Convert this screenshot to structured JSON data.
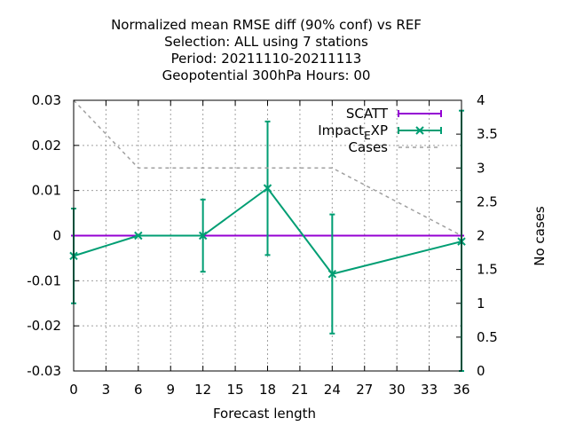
{
  "chart_data": {
    "type": "line",
    "title_lines": [
      "Normalized mean RMSE diff (90% conf) vs REF",
      "Selection: ALL using     7 stations",
      "Period: 20211110-20211113",
      "Geopotential 300hPa   Hours:  00"
    ],
    "xlabel": "Forecast length",
    "ylabel": "",
    "y2label": "No cases",
    "xlim": [
      0,
      36
    ],
    "ylim": [
      -0.03,
      0.03
    ],
    "y2lim": [
      0,
      4
    ],
    "xticks": [
      0,
      3,
      6,
      9,
      12,
      15,
      18,
      21,
      24,
      27,
      30,
      33,
      36
    ],
    "xtick_labels": [
      "0",
      "3",
      "6",
      "9",
      "12",
      "15",
      "18",
      "21",
      "24",
      "27",
      "30",
      "33",
      "36"
    ],
    "yticks": [
      -0.03,
      -0.02,
      -0.01,
      0,
      0.01,
      0.02,
      0.03
    ],
    "ytick_labels": [
      "-0.03",
      "-0.02",
      "-0.01",
      "0",
      "0.01",
      "0.02",
      "0.03"
    ],
    "y2ticks": [
      0,
      0.5,
      1,
      1.5,
      2,
      2.5,
      3,
      3.5,
      4
    ],
    "y2tick_labels": [
      "0",
      "0.5",
      "1",
      "1.5",
      "2",
      "2.5",
      "3",
      "3.5",
      "4"
    ],
    "grid": true,
    "legend_position": "top-right",
    "series": [
      {
        "name": "SCATT",
        "legend_main": "SCATT",
        "legend_sub": "",
        "legend_tail": "",
        "color": "#9400d3",
        "style": "errorbars",
        "axis": "y",
        "x": [
          0,
          6,
          12,
          18,
          24,
          36
        ],
        "y": [
          0,
          0,
          0,
          0,
          0,
          0
        ],
        "err": [
          0,
          0,
          0,
          0,
          0,
          0
        ]
      },
      {
        "name": "Impact_EXP",
        "legend_main": "Impact",
        "legend_sub": "E",
        "legend_tail": "XP",
        "color": "#009e73",
        "style": "errorbars",
        "axis": "y",
        "x": [
          0,
          6,
          12,
          18,
          24,
          36
        ],
        "y": [
          -0.0045,
          0.0,
          0.0,
          0.0105,
          -0.0085,
          -0.0013
        ],
        "err": [
          0.0105,
          0.0,
          0.008,
          0.0148,
          0.0132,
          0.029
        ]
      },
      {
        "name": "Cases",
        "legend_main": "Cases",
        "legend_sub": "",
        "legend_tail": "",
        "color": "#a0a0a0",
        "style": "dashed",
        "axis": "y2",
        "x": [
          0,
          6,
          12,
          18,
          24,
          36
        ],
        "y": [
          4,
          3,
          3,
          3,
          3,
          2
        ]
      }
    ]
  }
}
